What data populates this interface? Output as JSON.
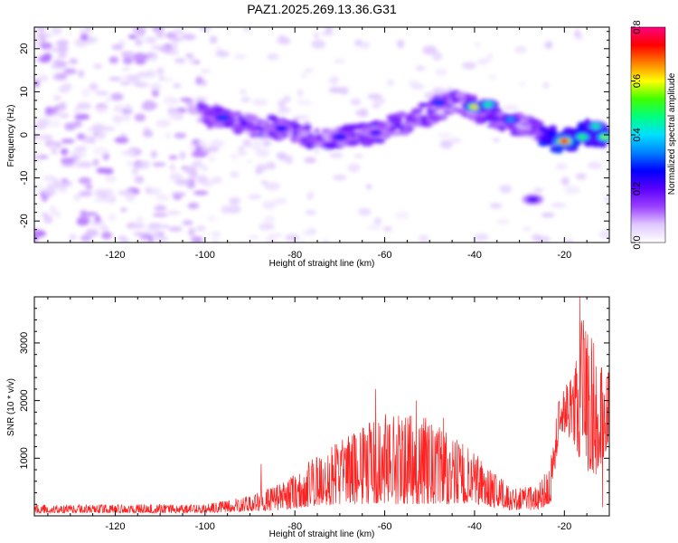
{
  "title": "PAZ1.2025.269.13.36.G31",
  "chart_data": [
    {
      "type": "heatmap",
      "title": "PAZ1.2025.269.13.36.G31",
      "xlabel": "Height of straight line (km)",
      "ylabel": "Frequency (Hz)",
      "xlim": [
        -138,
        -10
      ],
      "ylim": [
        -25,
        25
      ],
      "xticks": [
        -120,
        -100,
        -80,
        -60,
        -40,
        -20
      ],
      "yticks": [
        -20,
        -10,
        0,
        10,
        20
      ],
      "colorbar": {
        "label": "Normalized spectral amplitude",
        "range": [
          0.0,
          0.8
        ],
        "ticks": [
          "0.0",
          "0.2",
          "0.4",
          "0.6",
          "0.8"
        ],
        "colormap": [
          "#ffffff",
          "#e0c8ff",
          "#9b40ff",
          "#5a00ff",
          "#0000ff",
          "#0080ff",
          "#00e0ff",
          "#00ff80",
          "#40ff00",
          "#ffff00",
          "#ff8000",
          "#ff0000",
          "#ff0080"
        ]
      },
      "ridge": [
        {
          "x": -100,
          "y": 4.5
        },
        {
          "x": -95,
          "y": 4
        },
        {
          "x": -90,
          "y": 2.5
        },
        {
          "x": -85,
          "y": 1.5
        },
        {
          "x": -80,
          "y": 1
        },
        {
          "x": -75,
          "y": -0.5
        },
        {
          "x": -70,
          "y": -1
        },
        {
          "x": -65,
          "y": 0
        },
        {
          "x": -60,
          "y": 1
        },
        {
          "x": -55,
          "y": 3
        },
        {
          "x": -50,
          "y": 5
        },
        {
          "x": -45,
          "y": 8
        },
        {
          "x": -40,
          "y": 6
        },
        {
          "x": -35,
          "y": 4
        },
        {
          "x": -30,
          "y": 2.5
        },
        {
          "x": -25,
          "y": 0
        },
        {
          "x": -20,
          "y": -1.5
        },
        {
          "x": -15,
          "y": 0.5
        },
        {
          "x": -10,
          "y": -1
        }
      ],
      "peaks": [
        {
          "x": -96,
          "y": 4.0,
          "amp": 0.3
        },
        {
          "x": -83,
          "y": 1.5,
          "amp": 0.25
        },
        {
          "x": -70,
          "y": -0.5,
          "amp": 0.28
        },
        {
          "x": -62,
          "y": 0.5,
          "amp": 0.22
        },
        {
          "x": -48,
          "y": 7.5,
          "amp": 0.3
        },
        {
          "x": -40,
          "y": 6.5,
          "amp": 0.62
        },
        {
          "x": -37,
          "y": 7.0,
          "amp": 0.45
        },
        {
          "x": -32,
          "y": 3.5,
          "amp": 0.35
        },
        {
          "x": -27,
          "y": -15.0,
          "amp": 0.22
        },
        {
          "x": -20,
          "y": -1.5,
          "amp": 0.75
        },
        {
          "x": -16,
          "y": -0.5,
          "amp": 0.5
        },
        {
          "x": -13,
          "y": 2.0,
          "amp": 0.45
        },
        {
          "x": -11,
          "y": -0.5,
          "amp": 0.55
        }
      ]
    },
    {
      "type": "line",
      "xlabel": "Height of straight line (km)",
      "ylabel": "SNR (10 * v/v)",
      "xlim": [
        -138,
        -10
      ],
      "ylim": [
        0,
        3800
      ],
      "xticks": [
        -120,
        -100,
        -80,
        -60,
        -40,
        -20
      ],
      "yticks": [
        1000,
        2000,
        3000
      ],
      "color": "#ff2020",
      "envelope": [
        {
          "x": -138,
          "lo": 50,
          "hi": 200
        },
        {
          "x": -100,
          "lo": 50,
          "hi": 200
        },
        {
          "x": -90,
          "lo": 80,
          "hi": 350
        },
        {
          "x": -82,
          "lo": 100,
          "hi": 600
        },
        {
          "x": -78,
          "lo": 150,
          "hi": 900
        },
        {
          "x": -70,
          "lo": 200,
          "hi": 1300
        },
        {
          "x": -60,
          "lo": 200,
          "hi": 1800
        },
        {
          "x": -50,
          "lo": 200,
          "hi": 1700
        },
        {
          "x": -40,
          "lo": 200,
          "hi": 1100
        },
        {
          "x": -32,
          "lo": 100,
          "hi": 500
        },
        {
          "x": -26,
          "lo": 100,
          "hi": 500
        },
        {
          "x": -23,
          "lo": 200,
          "hi": 1000
        },
        {
          "x": -21,
          "lo": 1500,
          "hi": 2200
        },
        {
          "x": -18,
          "lo": 1300,
          "hi": 2500
        },
        {
          "x": -16,
          "lo": 800,
          "hi": 3600
        },
        {
          "x": -13,
          "lo": 700,
          "hi": 2900
        },
        {
          "x": -10,
          "lo": 1200,
          "hi": 2500
        }
      ],
      "spikes": [
        {
          "x": -87.5,
          "y": 900
        },
        {
          "x": -62,
          "y": 2200
        },
        {
          "x": -53,
          "y": 2000
        },
        {
          "x": -47,
          "y": 1700
        },
        {
          "x": -16.5,
          "y": 3800
        },
        {
          "x": -13.5,
          "y": 3000
        },
        {
          "x": -11.5,
          "y": 150
        }
      ]
    }
  ]
}
